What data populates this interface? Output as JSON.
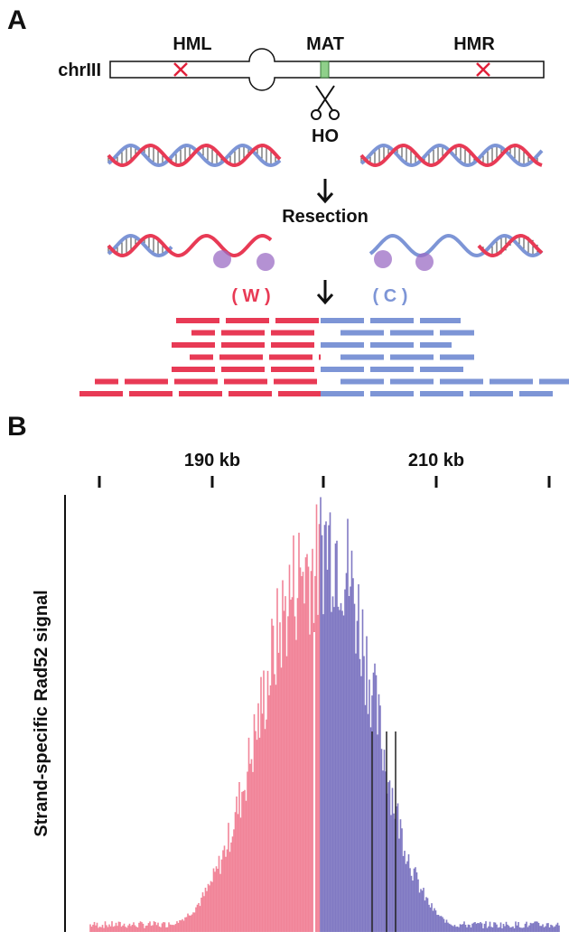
{
  "panel_a": {
    "label": "A",
    "chromosome": "chrIII",
    "loci": [
      "HML",
      "MAT",
      "HMR"
    ],
    "enzyme": "HO",
    "step": "Resection",
    "strands": [
      "( W )",
      "( C )"
    ]
  },
  "panel_b": {
    "label": "B",
    "axis_ticks": [
      "190 kb",
      "210 kb"
    ],
    "y_label": "Strand-specific Rad52 signal"
  }
}
